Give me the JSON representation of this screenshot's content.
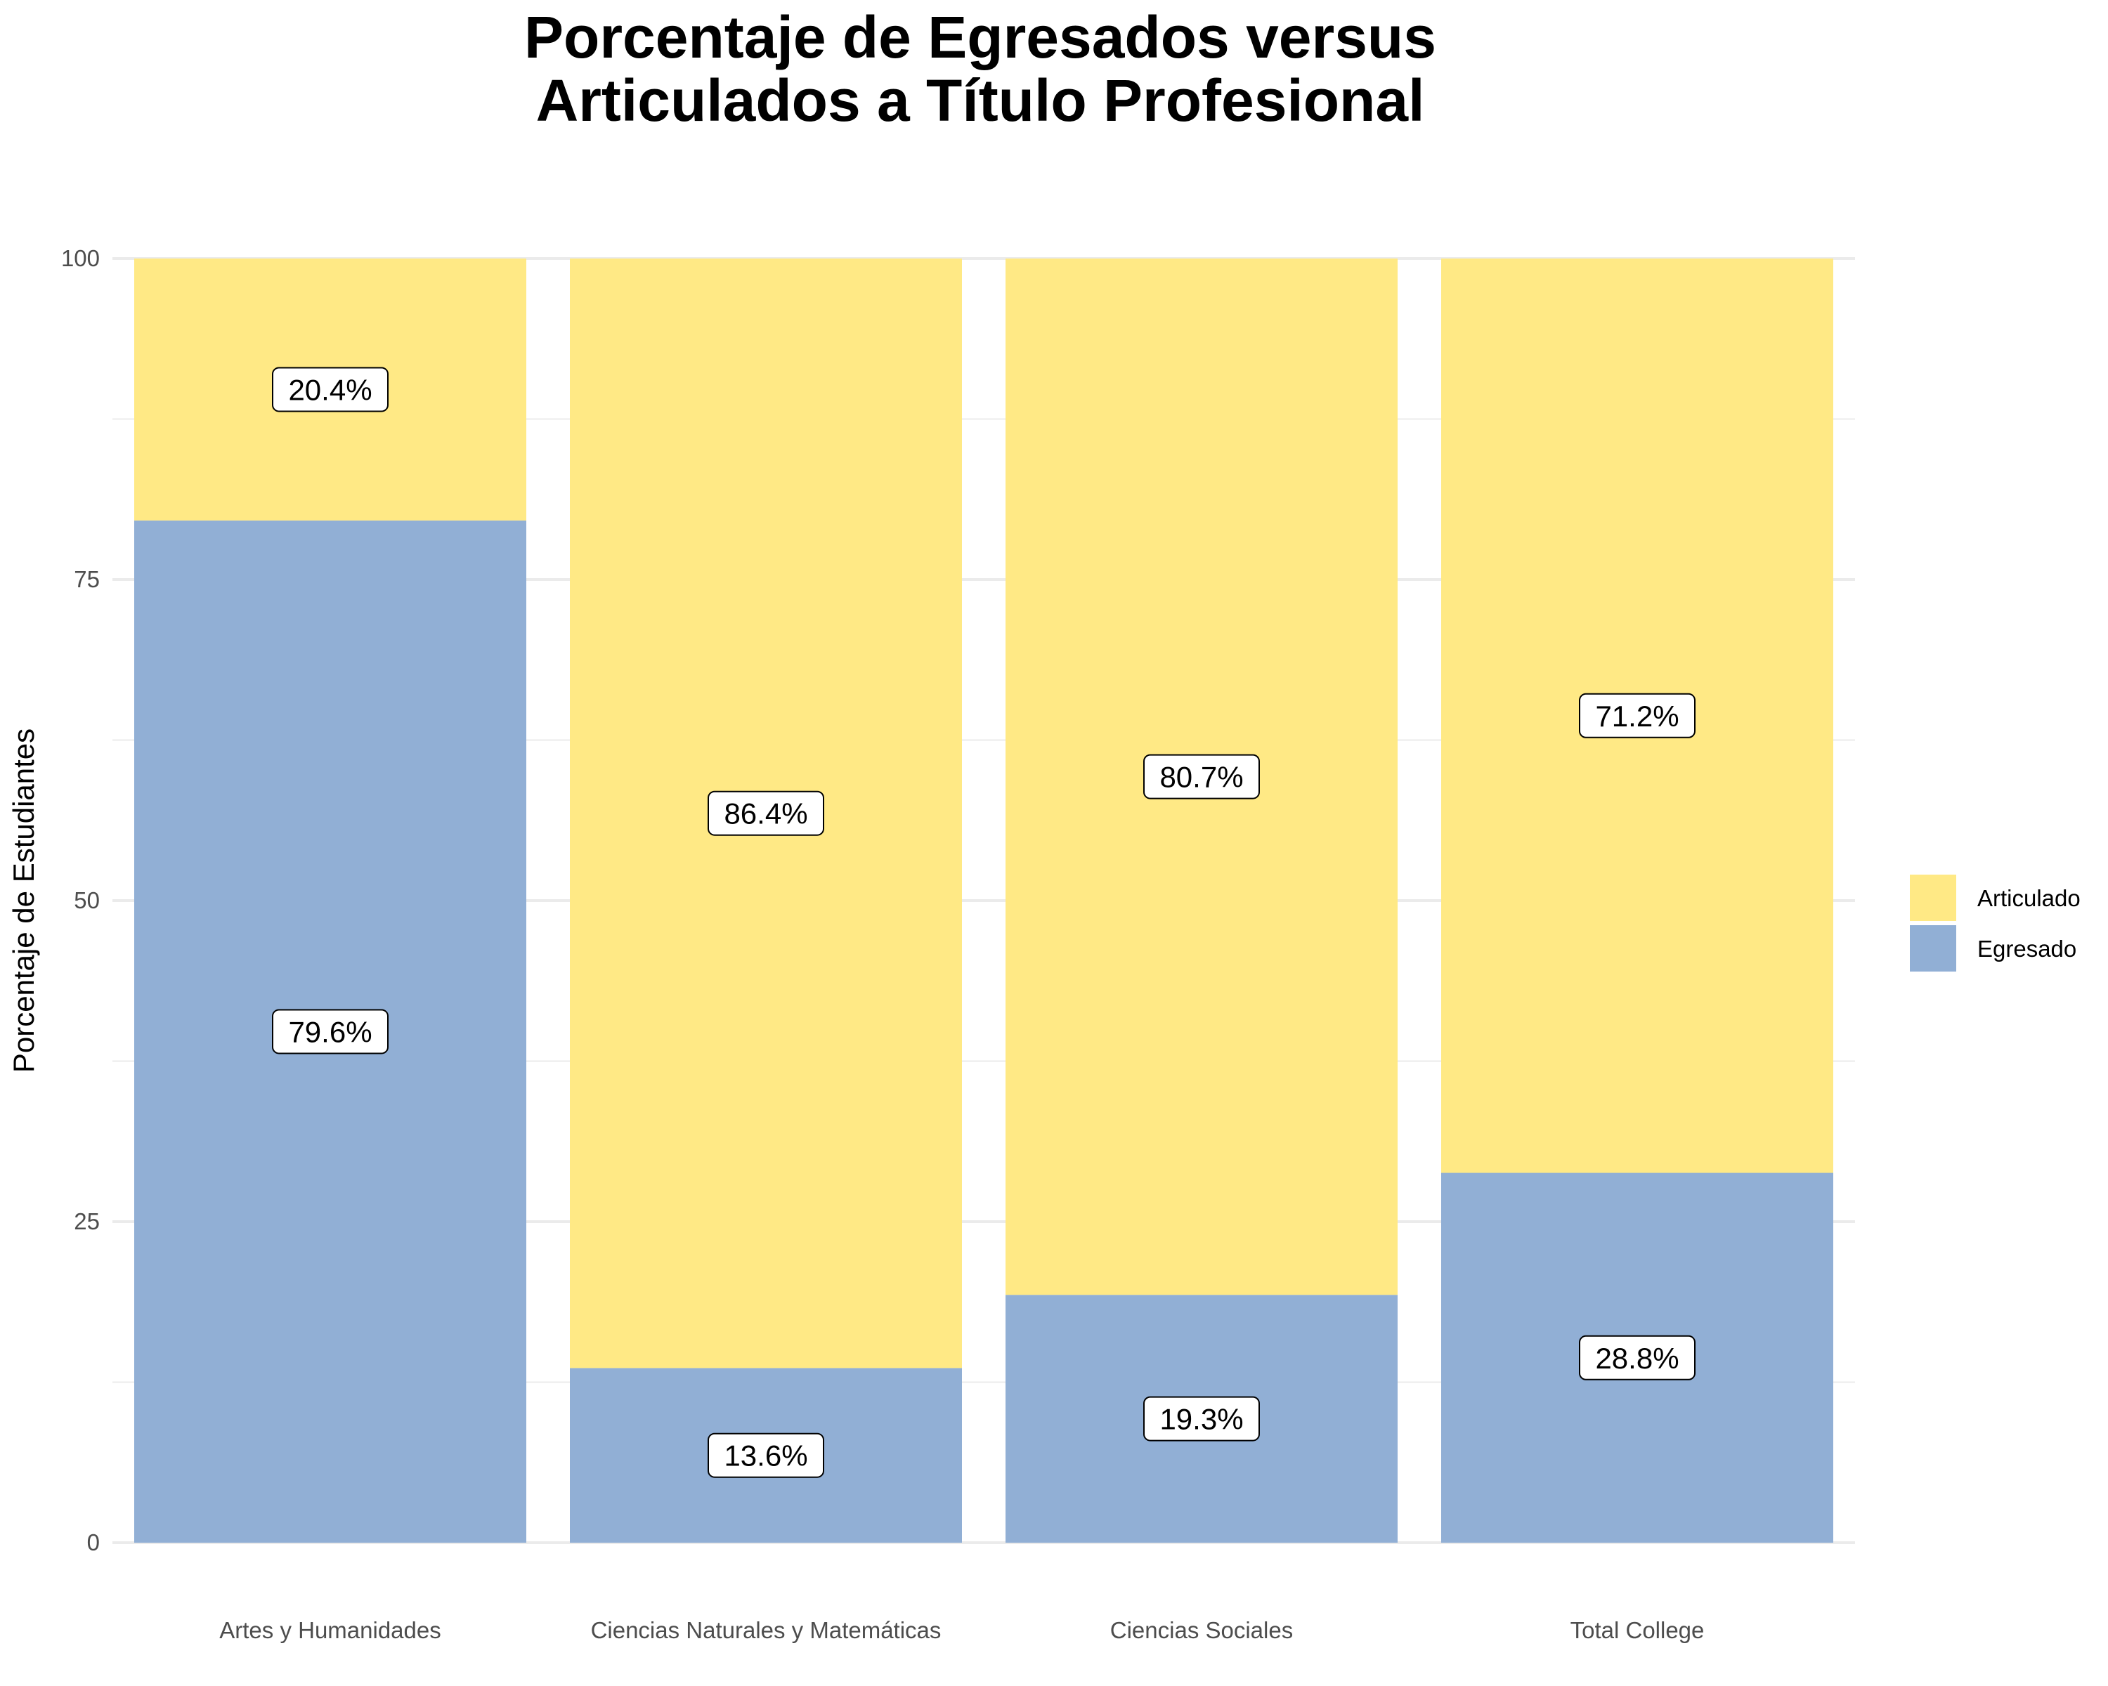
{
  "chart_data": {
    "type": "bar",
    "stacked": true,
    "title_lines": [
      "Porcentaje de Egresados versus",
      "Articulados a Título Profesional"
    ],
    "xlabel": "",
    "ylabel": "Porcentaje de Estudiantes",
    "ylim": [
      0,
      100
    ],
    "yticks": [
      0,
      25,
      50,
      75,
      100
    ],
    "grid": true,
    "legend_position": "right",
    "categories": [
      "Artes y Humanidades",
      "Ciencias Naturales y Matemáticas",
      "Ciencias Sociales",
      "Total College"
    ],
    "series": [
      {
        "name": "Egresado",
        "color": "#91afd5",
        "values": [
          79.6,
          13.6,
          19.3,
          28.8
        ],
        "labels": [
          "79.6%",
          "13.6%",
          "19.3%",
          "28.8%"
        ]
      },
      {
        "name": "Articulado",
        "color": "#ffe985",
        "values": [
          20.4,
          86.4,
          80.7,
          71.2
        ],
        "labels": [
          "20.4%",
          "86.4%",
          "80.7%",
          "71.2%"
        ]
      }
    ],
    "legend_order": [
      "Articulado",
      "Egresado"
    ]
  }
}
